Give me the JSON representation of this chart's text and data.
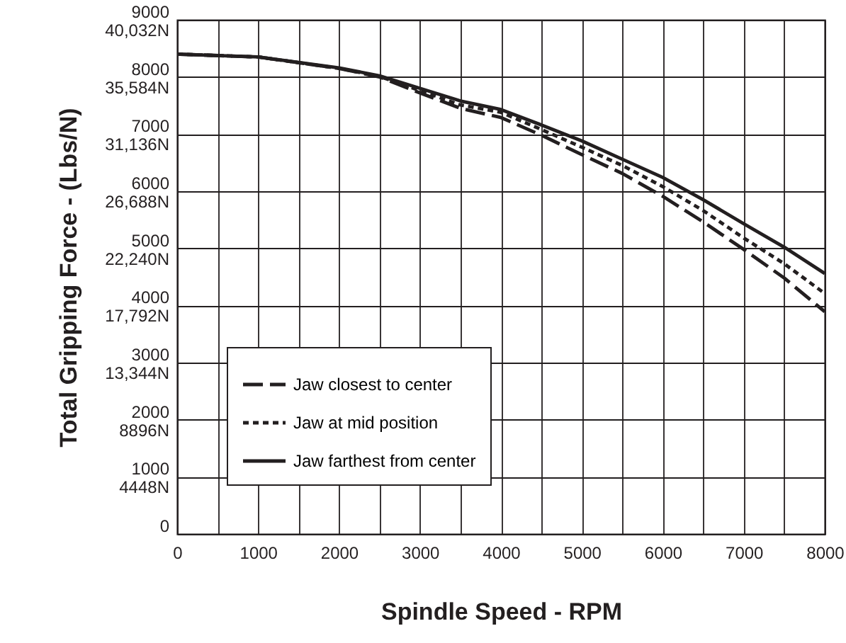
{
  "chart_data": {
    "type": "line",
    "xlabel": "Spindle Speed - RPM",
    "y2label": "Total Gripping Force - (Lbs/N)",
    "x": [
      0,
      1000,
      2000,
      2500,
      3000,
      3500,
      4000,
      4500,
      5000,
      5500,
      6000,
      6500,
      7000,
      7500,
      8000
    ],
    "series": [
      {
        "name": "Jaw closest to center",
        "color": "#231f20",
        "line_style": "dashed",
        "values": [
          8400,
          8350,
          8150,
          8000,
          7720,
          7450,
          7290,
          6980,
          6640,
          6310,
          5910,
          5460,
          4980,
          4480,
          3890
        ]
      },
      {
        "name": "Jaw at mid position",
        "color": "#231f20",
        "line_style": "dotted",
        "values": [
          8400,
          8350,
          8150,
          8010,
          7760,
          7510,
          7380,
          7080,
          6770,
          6450,
          6080,
          5660,
          5180,
          4730,
          4210
        ]
      },
      {
        "name": "Jaw farthest from center",
        "color": "#231f20",
        "line_style": "solid",
        "values": [
          8400,
          8350,
          8160,
          8020,
          7800,
          7580,
          7430,
          7160,
          6880,
          6560,
          6240,
          5850,
          5430,
          5020,
          4560
        ]
      }
    ],
    "xlim": [
      0,
      8000
    ],
    "xticks": [
      0,
      {
        "value": 500,
        "label": null
      },
      1000,
      {
        "value": 1500,
        "label": null
      },
      2000,
      {
        "value": 2500,
        "label": null
      },
      3000,
      {
        "value": 3500,
        "label": null
      },
      4000,
      {
        "value": 4500,
        "label": null
      },
      5000,
      {
        "value": 5500,
        "label": null
      },
      6000,
      {
        "value": 6500,
        "label": null
      },
      7000,
      {
        "value": 7500,
        "label": null
      },
      8000
    ],
    "ylim": [
      0,
      9000
    ],
    "yticks": [
      0,
      1000,
      2000,
      3000,
      4000,
      5000,
      6000,
      7000,
      8000,
      9000
    ],
    "y2lim": [
      0,
      40032
    ],
    "y2ticks": [
      {
        "value": 4448,
        "label": "4448N"
      },
      {
        "value": 8896,
        "label": "8896N"
      },
      {
        "value": 13344,
        "label": "13,344N"
      },
      {
        "value": 17792,
        "label": "17,792N"
      },
      {
        "value": 22240,
        "label": "22,240N"
      },
      {
        "value": 26688,
        "label": "26,688N"
      },
      {
        "value": 31136,
        "label": "31,136N"
      },
      {
        "value": 35584,
        "label": "35,584N"
      },
      {
        "value": 40032,
        "label": "40,032N"
      }
    ],
    "grid": true,
    "legend": "bottom left",
    "marker": "none"
  }
}
